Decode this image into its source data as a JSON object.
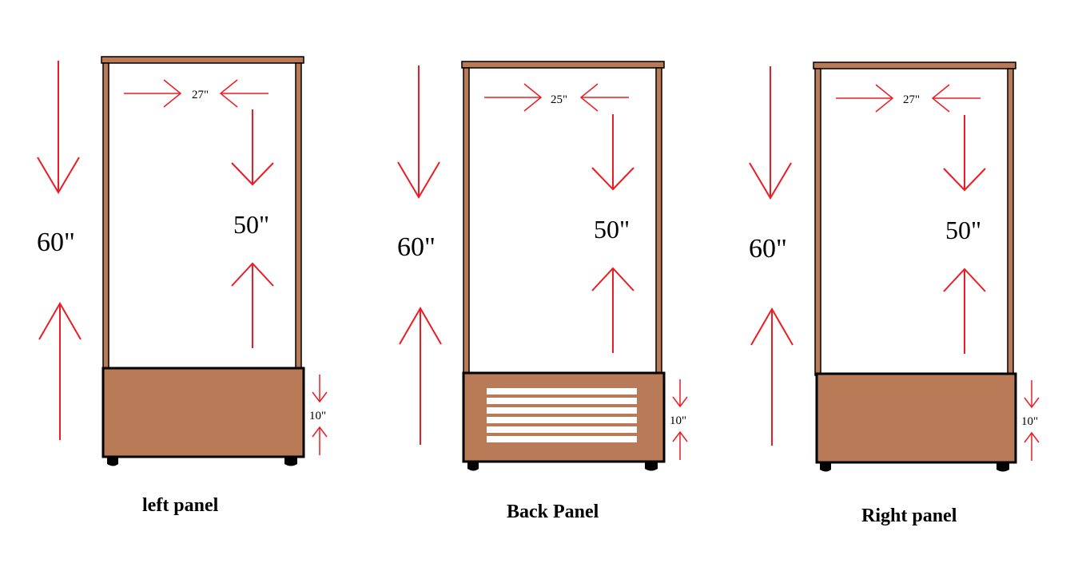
{
  "colors": {
    "wood": "#b97a57",
    "frame_dark": "#000000",
    "arrow": "#ed1c24",
    "vent": "#ffffff"
  },
  "panels": [
    {
      "caption": "left panel",
      "height_label": "60\"",
      "opening_height_label": "50\"",
      "width_label": "27\"",
      "base_height_label": "10\"",
      "has_vent": false
    },
    {
      "caption": "Back Panel",
      "height_label": "60\"",
      "opening_height_label": "50\"",
      "width_label": "25\"",
      "base_height_label": "10\"",
      "has_vent": true
    },
    {
      "caption": "Right panel",
      "height_label": "60\"",
      "opening_height_label": "50\"",
      "width_label": "27\"",
      "base_height_label": "10\"",
      "has_vent": false
    }
  ]
}
